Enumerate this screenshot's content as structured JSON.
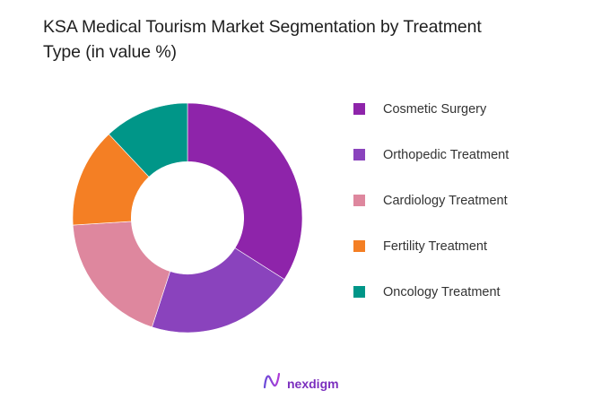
{
  "title_line1": "KSA Medical Tourism Market Segmentation by  Treatment",
  "title_line2": "Type (in value %)",
  "legend": [
    {
      "label": "Cosmetic Surgery",
      "color": "#8e24aa"
    },
    {
      "label": "Orthopedic Treatment",
      "color": "#8a43bd"
    },
    {
      "label": "Cardiology Treatment",
      "color": "#de879e"
    },
    {
      "label": "Fertility Treatment",
      "color": "#f47f24"
    },
    {
      "label": "Oncology Treatment",
      "color": "#009688"
    }
  ],
  "footer": {
    "brand": "nexdigm",
    "logo_icon": "nexdigm-logo-icon"
  },
  "chart_data": {
    "type": "pie",
    "variant": "donut",
    "title": "KSA Medical Tourism Market Segmentation by Treatment Type (in value %)",
    "categories": [
      "Cosmetic Surgery",
      "Orthopedic Treatment",
      "Cardiology Treatment",
      "Fertility Treatment",
      "Oncology Treatment"
    ],
    "values": [
      34,
      21,
      19,
      14,
      12
    ],
    "colors": [
      "#8e24aa",
      "#8a43bd",
      "#de879e",
      "#f47f24",
      "#009688"
    ],
    "start_angle_deg": 0,
    "direction": "clockwise",
    "inner_radius_ratio": 0.49,
    "legend_position": "right",
    "data_labels": false
  }
}
